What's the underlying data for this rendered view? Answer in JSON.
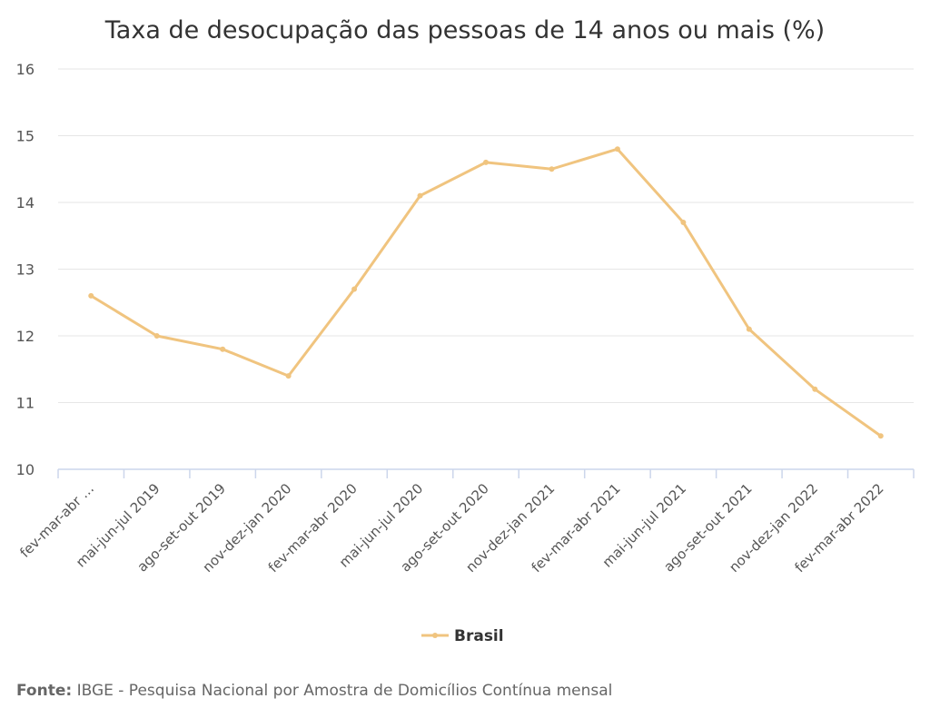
{
  "chart_data": {
    "type": "line",
    "title": "Taxa de desocupação das pessoas de 14 anos ou mais (%)",
    "categories": [
      "fev-mar-abr …",
      "mai-jun-jul 2019",
      "ago-set-out 2019",
      "nov-dez-jan 2020",
      "fev-mar-abr 2020",
      "mai-jun-jul 2020",
      "ago-set-out 2020",
      "nov-dez-jan 2021",
      "fev-mar-abr 2021",
      "mai-jun-jul 2021",
      "ago-set-out 2021",
      "nov-dez-jan 2022",
      "fev-mar-abr 2022"
    ],
    "series": [
      {
        "name": "Brasil",
        "color": "#f0c47f",
        "values": [
          12.6,
          12.0,
          11.8,
          11.4,
          12.7,
          14.1,
          14.6,
          14.5,
          14.8,
          13.7,
          12.1,
          11.2,
          10.5
        ]
      }
    ],
    "ylim": [
      10,
      16
    ],
    "yticks": [
      10,
      11,
      12,
      13,
      14,
      15,
      16
    ],
    "grid": true,
    "legend": "bottom-center",
    "xlabel": "",
    "ylabel": ""
  },
  "source": {
    "label": "Fonte:",
    "text": "IBGE - Pesquisa Nacional por Amostra de Domicílios Contínua mensal"
  }
}
